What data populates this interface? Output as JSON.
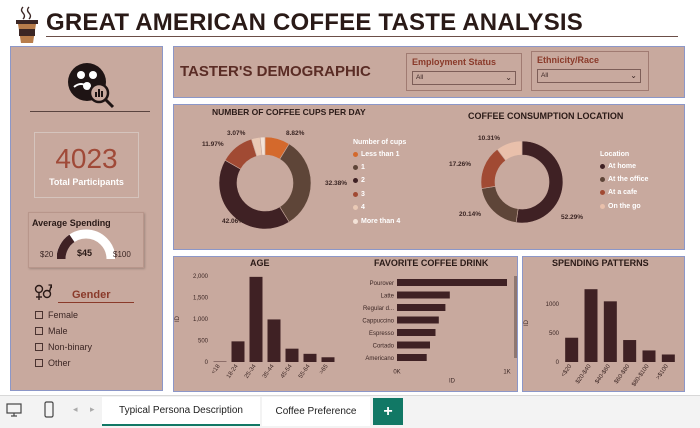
{
  "header": {
    "title": "GREAT AMERICAN COFFEE TASTE ANALYSIS"
  },
  "kpi": {
    "total_participants_value": "4023",
    "total_participants_label": "Total Participants"
  },
  "spending": {
    "title": "Average Spending",
    "min": "$20",
    "value": "$45",
    "max": "$100",
    "fill_fraction": 0.31
  },
  "gender": {
    "title": "Gender",
    "options": [
      "Female",
      "Male",
      "Non-binary",
      "Other"
    ]
  },
  "demographic": {
    "title": "TASTER'S DEMOGRAPHIC"
  },
  "filters": {
    "employment": {
      "label": "Employment Status",
      "value": "All"
    },
    "ethnicity": {
      "label": "Ethnicity/Race",
      "value": "All"
    }
  },
  "cups_chart": {
    "title": "NUMBER OF COFFEE CUPS PER DAY",
    "legend_title": "Number of cups",
    "legend": [
      "Less than 1",
      "1",
      "2",
      "3",
      "4",
      "More than 4"
    ],
    "labels": [
      "8.82%",
      "32.38%",
      "42.06%",
      "11.97%",
      "3.07%"
    ]
  },
  "location_chart": {
    "title": "COFFEE CONSUMPTION LOCATION",
    "legend_title": "Location",
    "legend": [
      "At home",
      "At the office",
      "At a cafe",
      "On the go"
    ],
    "labels": [
      "52.29%",
      "20.14%",
      "17.26%",
      "10.31%"
    ]
  },
  "chart_data": [
    {
      "type": "pie",
      "title": "NUMBER OF COFFEE CUPS PER DAY",
      "categories": [
        "Less than 1",
        "1",
        "2",
        "3",
        "4",
        "More than 4"
      ],
      "values": [
        8.82,
        32.38,
        42.06,
        11.97,
        3.07,
        1.7
      ],
      "colors": [
        "#d4692c",
        "#5e4538",
        "#3f2124",
        "#a14a33",
        "#e9c9b5",
        "#f3e2d7"
      ]
    },
    {
      "type": "pie",
      "title": "COFFEE CONSUMPTION LOCATION",
      "categories": [
        "At home",
        "At the office",
        "At a cafe",
        "On the go"
      ],
      "values": [
        52.29,
        20.14,
        17.26,
        10.31
      ],
      "colors": [
        "#3f2124",
        "#5e4538",
        "#a14a33",
        "#e9c0ab"
      ]
    },
    {
      "type": "bar",
      "title": "AGE",
      "categories": [
        "<18",
        "18-24",
        "25-34",
        "35-44",
        "45-54",
        "55-64",
        ">65"
      ],
      "values": [
        10,
        480,
        1980,
        990,
        310,
        190,
        110
      ],
      "ylabel": "ID",
      "yticks": [
        "0",
        "500",
        "1,000",
        "1,500",
        "2,000"
      ],
      "ylim": [
        0,
        2000
      ]
    },
    {
      "type": "bar",
      "orientation": "horizontal",
      "title": "FAVORITE COFFEE DRINK",
      "categories": [
        "Pourover",
        "Latte",
        "Regular d...",
        "Cappuccino",
        "Espresso",
        "Cortado",
        "Americano"
      ],
      "values": [
        1000,
        480,
        440,
        380,
        350,
        300,
        270
      ],
      "xlabel": "ID",
      "xticks": [
        "0K",
        "1K"
      ],
      "xlim": [
        0,
        1000
      ]
    },
    {
      "type": "bar",
      "title": "SPENDING PATTERNS",
      "categories": [
        "<$20",
        "$20-$40",
        "$40-$60",
        "$60-$80",
        "$80-$100",
        ">$100"
      ],
      "values": [
        420,
        1260,
        1050,
        380,
        200,
        130
      ],
      "ylabel": "ID",
      "yticks": [
        "0",
        "500",
        "1000"
      ],
      "ylim": [
        0,
        1350
      ]
    }
  ],
  "tabs": {
    "tab1": "Typical Persona Description",
    "tab2": "Coffee Preference",
    "add": "+"
  }
}
